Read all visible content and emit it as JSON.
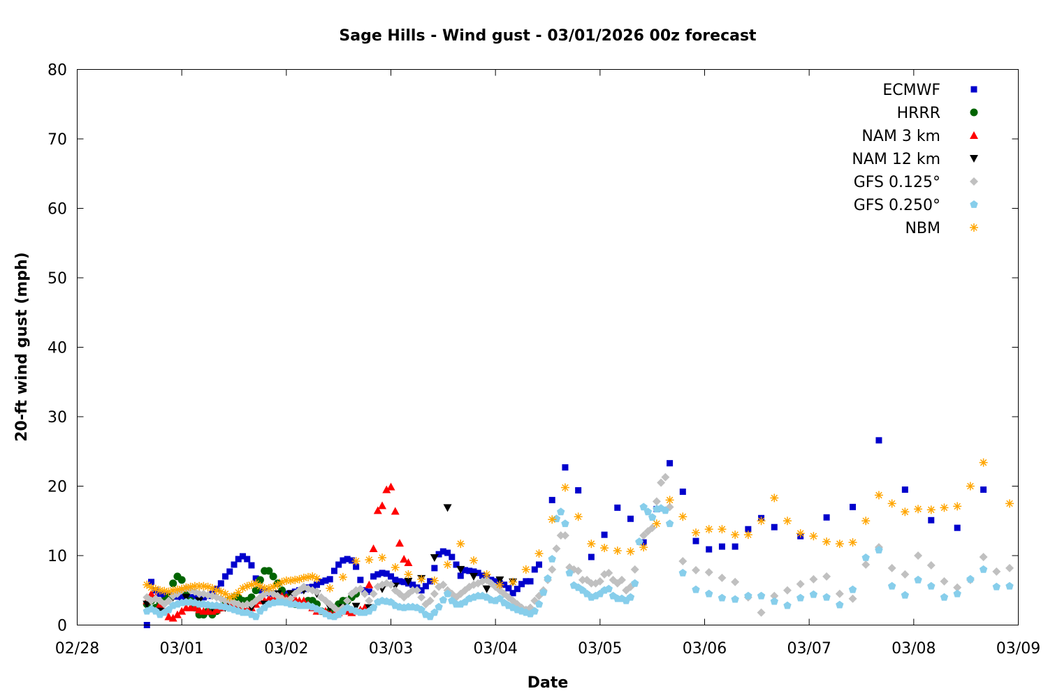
{
  "chart_data": {
    "type": "scatter",
    "title": "Sage Hills - Wind gust - 03/01/2026 00z forecast",
    "xlabel": "Date",
    "ylabel": "20-ft wind gust (mph)",
    "x_units": "hours after 02/28 00:00 (local)",
    "xlim": [
      0,
      216
    ],
    "ylim": [
      0,
      80
    ],
    "x_ticks": [
      {
        "hour": 0,
        "label": "02/28"
      },
      {
        "hour": 24,
        "label": "03/01"
      },
      {
        "hour": 48,
        "label": "03/02"
      },
      {
        "hour": 72,
        "label": "03/03"
      },
      {
        "hour": 96,
        "label": "03/04"
      },
      {
        "hour": 120,
        "label": "03/05"
      },
      {
        "hour": 144,
        "label": "03/06"
      },
      {
        "hour": 168,
        "label": "03/07"
      },
      {
        "hour": 192,
        "label": "03/08"
      },
      {
        "hour": 216,
        "label": "03/09"
      }
    ],
    "y_ticks": [
      0,
      10,
      20,
      30,
      40,
      50,
      60,
      70,
      80
    ],
    "grid": false,
    "legend_position": "top-right",
    "series": [
      {
        "name": "ECMWF",
        "marker": "square",
        "color": "#0000cc",
        "segments": [
          {
            "start_hour": 16,
            "step_hours": 1,
            "values": [
              0,
              6.2,
              5.0,
              4.5,
              4.3,
              4.2,
              4.2,
              4.1,
              4.0,
              4.0,
              4.0,
              4.0,
              4.0,
              4.0,
              4.2,
              4.5,
              5.2,
              6.0,
              7.0,
              7.7,
              8.7,
              9.5,
              9.9,
              9.5,
              8.6,
              6.7,
              5.0,
              4.8,
              4.6,
              4.5,
              4.5,
              4.5,
              4.5,
              4.6,
              4.8,
              5.0,
              5.2,
              5.4,
              5.5,
              5.8,
              6.2,
              6.4,
              6.6,
              7.8,
              8.7,
              9.3,
              9.5,
              9.3,
              8.4,
              6.5,
              5.0,
              4.8,
              7.0,
              7.3,
              7.5,
              7.4,
              7.0,
              6.5,
              6.3,
              6.2,
              6.0,
              5.8,
              5.4,
              5.0,
              5.6,
              6.3,
              8.2,
              10.2,
              10.6,
              10.4,
              9.8,
              8.7,
              7.1,
              7.9,
              7.8,
              7.7,
              7.5,
              7.1,
              6.8,
              6.5,
              6.3,
              6.0,
              5.8,
              5.3,
              4.6,
              5.2,
              5.9,
              6.3,
              6.3,
              8.0,
              8.7
            ]
          },
          {
            "start_hour": 109,
            "step_hours": 3,
            "values": [
              18.0,
              22.7,
              19.4,
              9.8,
              13.0,
              16.9,
              15.3,
              11.9,
              16.7,
              23.3,
              19.2,
              12.1,
              10.9,
              11.3,
              11.3,
              13.8,
              15.4,
              14.1
            ]
          },
          {
            "start_hour": 166,
            "step_hours": 6,
            "values": [
              12.8,
              15.5,
              17.0,
              26.6,
              19.5,
              15.1,
              14.0,
              19.5
            ]
          }
        ]
      },
      {
        "name": "HRRR",
        "marker": "circle",
        "color": "#006400",
        "segments": [
          {
            "start_hour": 16,
            "step_hours": 1,
            "values": [
              3.0,
              3.5,
              2.5,
              3.0,
              3.5,
              4.0,
              6.0,
              7.0,
              6.5,
              4.5,
              3.5,
              2.5,
              1.5,
              1.5,
              2.0,
              1.5,
              2.0,
              2.5,
              3.0,
              3.5,
              4.0,
              4.0,
              3.5,
              3.5,
              4.0,
              5.0,
              6.5,
              7.8,
              7.8,
              7.0,
              6.0,
              5.0,
              4.0,
              3.5,
              3.0,
              3.0,
              3.0,
              3.5,
              3.5,
              3.0,
              2.0,
              1.8,
              2.0,
              2.5,
              3.0,
              3.5,
              3.5,
              4.0,
              4.5
            ]
          }
        ]
      },
      {
        "name": "NAM 3 km",
        "marker": "triangle-up",
        "color": "#ff0000",
        "segments": [
          {
            "start_hour": 16,
            "step_hours": 1,
            "values": [
              3.5,
              4.5,
              4.0,
              3.0,
              2.0,
              1.2,
              1.0,
              1.5,
              2.0,
              2.5,
              2.5,
              2.5,
              2.2,
              2.0,
              2.0,
              2.0,
              2.2,
              2.5,
              3.0,
              3.0,
              3.0,
              2.8,
              2.5,
              2.2,
              2.5,
              3.0,
              3.5,
              3.5,
              3.8,
              4.0,
              4.0,
              4.2,
              4.0,
              4.0,
              3.8,
              3.5,
              3.5,
              3.0,
              2.5,
              2.0,
              2.0,
              2.0,
              1.8,
              1.5,
              1.8,
              2.0,
              2.0,
              1.8,
              2.0,
              2.2,
              2.5,
              5.8,
              11.0,
              16.5,
              17.2,
              19.5,
              19.9,
              16.4,
              11.8,
              9.5,
              9.0
            ]
          }
        ]
      },
      {
        "name": "NAM 12 km",
        "marker": "triangle-down",
        "color": "#000000",
        "segments": [
          {
            "start_hour": 16,
            "step_hours": 3,
            "values": [
              3.0,
              2.0,
              4.0,
              4.0,
              3.5,
              2.5,
              2.5,
              2.8,
              2.5,
              3.0,
              4.5,
              4.5,
              5.0,
              4.5,
              2.5,
              2.5,
              2.7,
              2.5,
              5.2,
              5.6,
              6.3,
              6.7,
              9.7,
              16.9,
              8.0,
              7.0,
              5.2,
              6.5,
              6.2
            ]
          }
        ]
      },
      {
        "name": "GFS 0.125°",
        "marker": "diamond",
        "color": "#c0c0c0",
        "segments": [
          {
            "start_hour": 16,
            "step_hours": 1,
            "values": [
              4.0,
              3.5,
              3.8,
              3.5,
              3.0,
              3.5,
              4.2,
              4.5,
              5.0,
              5.3,
              5.0,
              4.8,
              4.5,
              4.5,
              4.3,
              4.2,
              4.0,
              3.8,
              3.5,
              3.5,
              3.2,
              3.0,
              2.8,
              3.0,
              3.0,
              3.5,
              4.0,
              4.5,
              4.7,
              4.5,
              4.2,
              3.8,
              3.5,
              3.8,
              4.5,
              5.0,
              5.5,
              5.2,
              5.0,
              4.8,
              4.0,
              3.5,
              3.0,
              2.5,
              2.0,
              2.5,
              3.5,
              4.5,
              5.0,
              5.2,
              4.5,
              3.5,
              4.5,
              5.5,
              5.8,
              6.0,
              5.8,
              5.0,
              4.5,
              4.0,
              4.5,
              5.0,
              5.0,
              4.0,
              3.0,
              3.5,
              4.5,
              5.5,
              5.8,
              5.0,
              4.5,
              4.0,
              4.5,
              5.0,
              5.5,
              5.8,
              6.0,
              6.3,
              6.5,
              6.0,
              5.5,
              5.0,
              4.5,
              4.0,
              3.5,
              3.0,
              2.5,
              2.2,
              2.5,
              3.5,
              4.2,
              5.0,
              6.5,
              8.0,
              11.0,
              12.9,
              12.9,
              8.3,
              8.0,
              7.8,
              6.5,
              6.5,
              6.0,
              6.0,
              6.3,
              7.3,
              7.5,
              6.5,
              6.0,
              6.5,
              5.0,
              5.5,
              8.0,
              12.0,
              12.9,
              13.5,
              14.0,
              17.8,
              20.5,
              21.3,
              17.0
            ]
          },
          {
            "start_hour": 139,
            "step_hours": 3,
            "values": [
              9.2,
              7.9,
              7.6,
              6.8,
              6.2,
              4.0,
              1.8,
              4.2,
              5.0,
              5.9,
              6.6,
              7.0,
              4.5,
              3.8,
              8.7,
              11.2,
              8.2,
              7.3,
              10.0,
              8.6,
              6.3,
              5.4,
              6.5,
              9.8,
              7.7,
              8.2
            ]
          }
        ]
      },
      {
        "name": "GFS 0.250°",
        "marker": "pentagon",
        "color": "#87ceeb",
        "segments": [
          {
            "start_hour": 16,
            "step_hours": 1,
            "values": [
              2.0,
              2.3,
              2.0,
              1.5,
              1.8,
              2.2,
              2.8,
              3.0,
              3.2,
              3.3,
              3.3,
              3.2,
              3.0,
              3.0,
              2.9,
              2.8,
              2.8,
              2.7,
              2.6,
              2.4,
              2.2,
              2.0,
              1.8,
              1.8,
              1.5,
              1.2,
              2.0,
              2.5,
              3.0,
              3.2,
              3.3,
              3.3,
              3.2,
              3.0,
              3.0,
              2.8,
              2.8,
              2.8,
              2.6,
              2.3,
              2.0,
              1.6,
              1.3,
              1.2,
              1.5,
              2.0,
              2.5,
              2.2,
              2.0,
              1.8,
              1.8,
              2.0,
              2.5,
              3.3,
              3.5,
              3.4,
              3.3,
              2.8,
              2.6,
              2.5,
              2.6,
              2.6,
              2.5,
              2.2,
              1.5,
              1.2,
              1.8,
              2.6,
              3.6,
              4.5,
              3.5,
              3.0,
              3.0,
              3.3,
              3.8,
              4.0,
              4.2,
              4.2,
              4.0,
              3.6,
              3.5,
              3.8,
              3.2,
              2.8,
              2.5,
              2.2,
              2.0,
              1.8,
              1.6,
              2.0,
              3.0,
              4.7,
              6.7,
              9.5,
              15.3,
              16.3,
              14.6,
              7.5,
              5.7,
              5.4,
              5.0,
              4.5,
              4.0,
              4.2,
              4.5,
              5.0,
              5.2,
              4.2,
              3.8,
              3.8,
              3.5,
              4.0,
              6.0,
              12.0,
              17.0,
              16.3,
              15.5,
              16.7,
              16.8,
              16.5,
              14.6
            ]
          },
          {
            "start_hour": 139,
            "step_hours": 3,
            "values": [
              7.5,
              5.1,
              4.5,
              3.9,
              3.7,
              4.2,
              4.2,
              3.4,
              2.8,
              3.9,
              4.4,
              4.0,
              2.9,
              5.1,
              9.7,
              10.8,
              5.6,
              4.3,
              6.5,
              5.6,
              4.0,
              4.5,
              6.6,
              8.0,
              5.5,
              5.6
            ]
          }
        ]
      },
      {
        "name": "NBM",
        "marker": "asterisk",
        "color": "#ffa500",
        "segments": [
          {
            "start_hour": 16,
            "step_hours": 1,
            "values": [
              5.8,
              5.4,
              5.2,
              5.0,
              4.9,
              4.8,
              5.0,
              5.1,
              5.2,
              5.4,
              5.5,
              5.6,
              5.6,
              5.6,
              5.5,
              5.3,
              5.0,
              4.8,
              4.5,
              4.0,
              4.2,
              4.7,
              5.3,
              5.6,
              5.8,
              6.0,
              5.6,
              5.3,
              5.3,
              5.5,
              5.8,
              6.2,
              6.4,
              6.4,
              6.5,
              6.6,
              6.8,
              6.9,
              7.0,
              6.7
            ]
          },
          {
            "start_hour": 58,
            "step_hours": 3,
            "values": [
              5.3,
              6.9,
              9.2,
              9.4,
              9.7,
              8.3,
              7.3,
              6.6,
              6.4,
              8.7,
              11.7,
              9.3,
              7.3,
              5.8,
              6.2,
              8.0,
              10.3,
              15.2,
              19.8,
              15.6,
              11.7,
              11.1,
              10.7,
              10.6,
              11.2,
              14.6,
              18.0,
              15.6,
              13.3,
              13.8,
              13.8,
              13.0,
              13.0,
              15.0,
              18.3,
              15.0,
              13.2,
              12.8,
              12.0,
              11.7,
              11.9,
              15.0,
              18.7,
              17.5,
              16.3,
              16.7,
              16.6,
              16.9,
              17.1,
              20.0,
              23.4
            ]
          },
          {
            "start_hour": 214,
            "step_hours": 3,
            "values": [
              17.5
            ]
          }
        ]
      }
    ]
  }
}
